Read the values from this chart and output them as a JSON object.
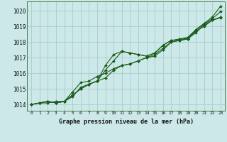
{
  "title": "Graphe pression niveau de la mer (hPa)",
  "bg_color": "#cce8e8",
  "grid_color": "#aacccc",
  "line_color": "#1a5c1a",
  "xlim": [
    -0.5,
    23.5
  ],
  "ylim": [
    1013.6,
    1020.6
  ],
  "yticks": [
    1014,
    1015,
    1016,
    1017,
    1018,
    1019,
    1020
  ],
  "xticks": [
    0,
    1,
    2,
    3,
    4,
    5,
    6,
    7,
    8,
    9,
    10,
    11,
    12,
    13,
    14,
    15,
    16,
    17,
    18,
    19,
    20,
    21,
    22,
    23
  ],
  "series": [
    [
      1014.0,
      1014.1,
      1014.1,
      1014.2,
      1014.2,
      1014.8,
      1015.4,
      1015.5,
      1015.8,
      1016.0,
      1016.3,
      1016.5,
      1016.6,
      1016.8,
      1017.0,
      1017.2,
      1017.6,
      1018.0,
      1018.1,
      1018.2,
      1018.7,
      1019.0,
      1019.4,
      1019.6
    ],
    [
      1014.0,
      1014.1,
      1014.2,
      1014.1,
      1014.2,
      1014.5,
      1015.1,
      1015.3,
      1015.5,
      1016.5,
      1017.2,
      1017.4,
      1017.3,
      1017.2,
      1017.1,
      1017.3,
      1017.8,
      1018.1,
      1018.2,
      1018.3,
      1018.8,
      1019.2,
      1019.6,
      1020.3
    ],
    [
      1014.0,
      1014.1,
      1014.2,
      1014.1,
      1014.2,
      1014.6,
      1015.0,
      1015.3,
      1015.5,
      1016.2,
      1016.8,
      1017.4,
      1017.3,
      1017.2,
      1017.1,
      1017.3,
      1017.8,
      1018.1,
      1018.15,
      1018.25,
      1018.75,
      1019.15,
      1019.5,
      1019.95
    ],
    [
      1014.0,
      1014.1,
      1014.2,
      1014.1,
      1014.2,
      1014.6,
      1015.0,
      1015.3,
      1015.5,
      1015.7,
      1016.2,
      1016.5,
      1016.6,
      1016.8,
      1017.0,
      1017.1,
      1017.5,
      1018.0,
      1018.1,
      1018.2,
      1018.6,
      1019.1,
      1019.4,
      1019.55
    ]
  ]
}
